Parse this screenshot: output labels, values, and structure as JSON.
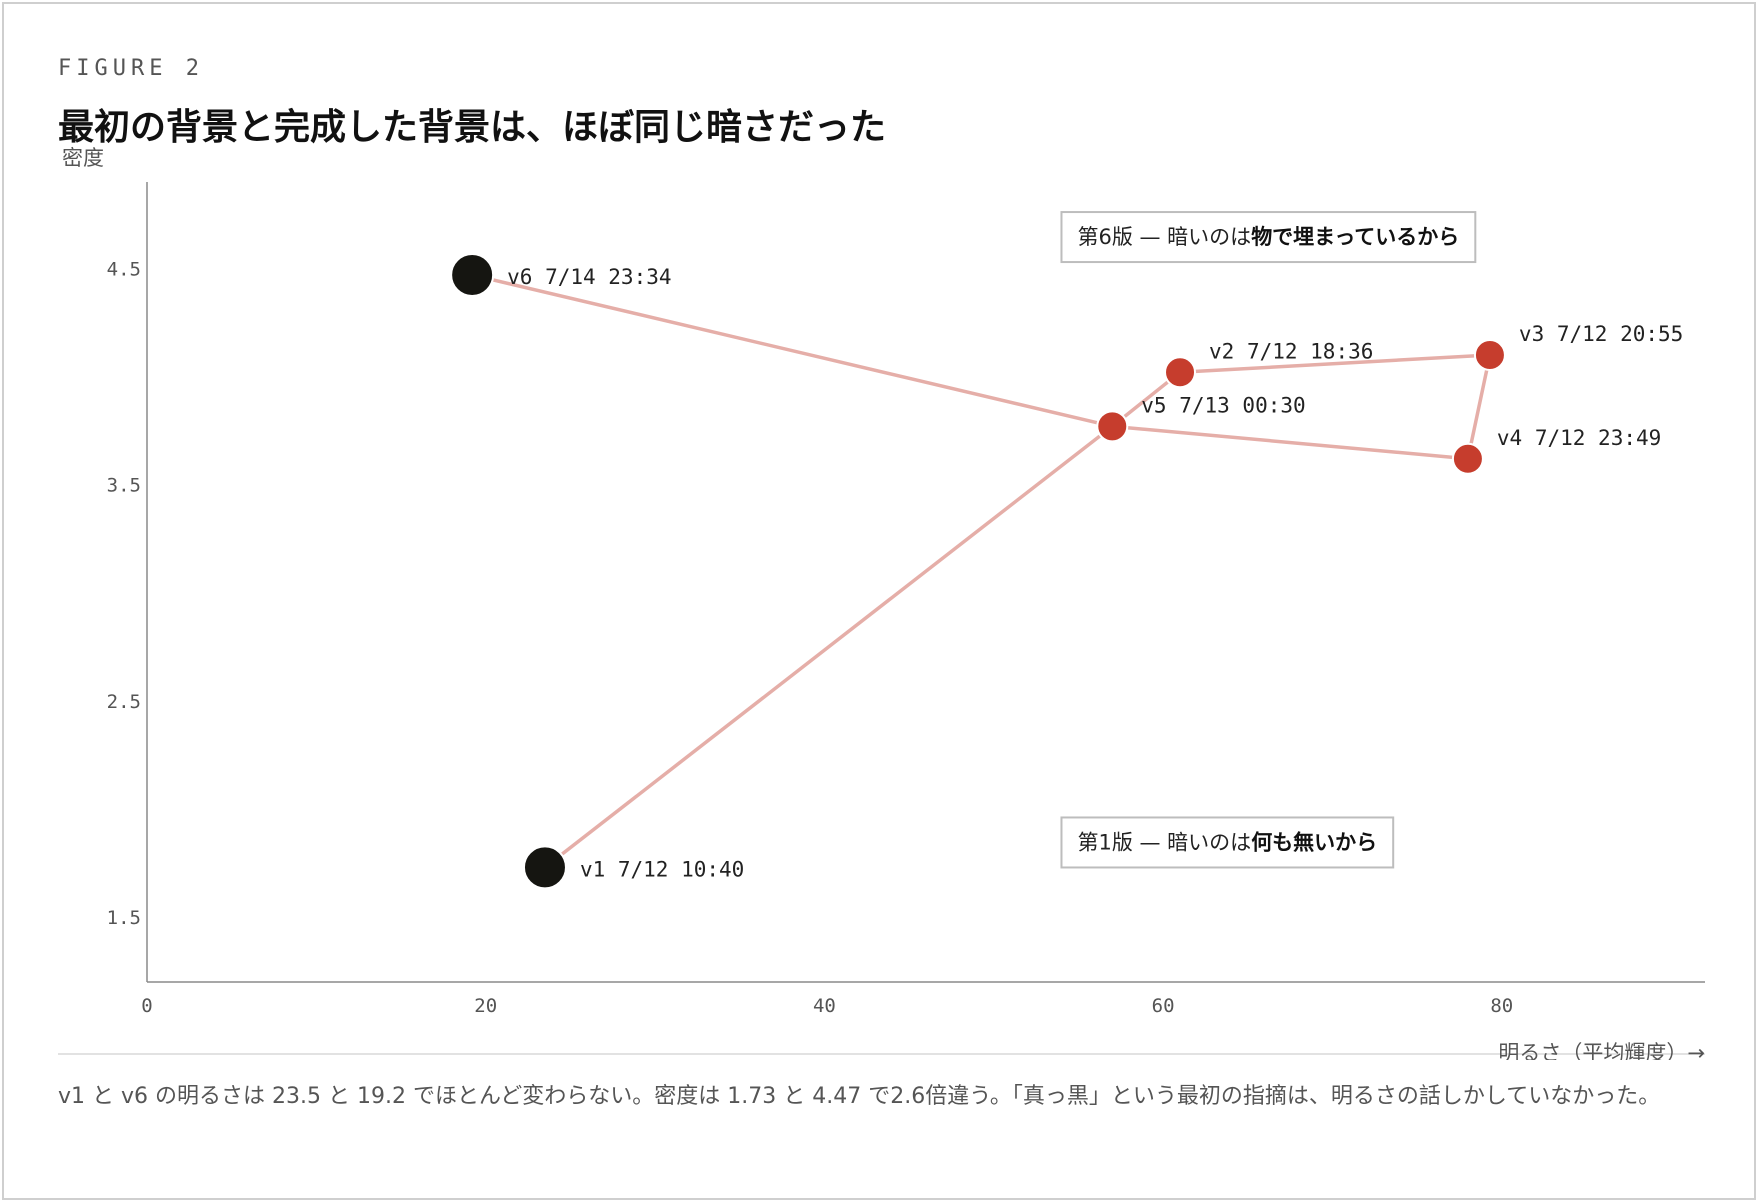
{
  "figure_label": "FIGURE 2",
  "title": "最初の背景と完成した背景は、ほぼ同じ暗さだった",
  "caption": "v1 と v6 の明るさは 23.5 と 19.2 でほとんど変わらない。密度は 1.73 と 4.47 で2.6倍違う。「真っ黒」という最初の指摘は、明るさの話しかしていなかった。",
  "colors": {
    "dark": "#151511",
    "red": "#c63d2d",
    "line": "#e5aea8",
    "axis": "#8a8a8a"
  },
  "chart_data": {
    "type": "scatter",
    "xlabel": "明るさ（平均輝度）→",
    "ylabel": "密度",
    "xlim": [
      0,
      92
    ],
    "ylim": [
      1.2,
      4.9
    ],
    "xticks": [
      "0",
      "20",
      "40",
      "60",
      "80"
    ],
    "yticks": [
      "1.5",
      "2.5",
      "3.5",
      "4.5"
    ],
    "grid": false,
    "points": [
      {
        "id": "v1",
        "time": "7/12 10:40",
        "x": 23.5,
        "y": 1.73,
        "highlight": true
      },
      {
        "id": "v2",
        "time": "7/12 18:36",
        "x": 61.0,
        "y": 4.02,
        "highlight": false
      },
      {
        "id": "v3",
        "time": "7/12 20:55",
        "x": 79.3,
        "y": 4.1,
        "highlight": false
      },
      {
        "id": "v4",
        "time": "7/12 23:49",
        "x": 78.0,
        "y": 3.62,
        "highlight": false
      },
      {
        "id": "v5",
        "time": "7/13 00:30",
        "x": 57.0,
        "y": 3.77,
        "highlight": false
      },
      {
        "id": "v6",
        "time": "7/14 23:34",
        "x": 19.2,
        "y": 4.47,
        "highlight": true
      }
    ],
    "path_order": [
      "v1",
      "v5",
      "v2",
      "v3",
      "v4",
      "v5",
      "v6"
    ],
    "annotations": [
      {
        "prefix": "第6版 — 暗いのは",
        "emphasis": "物で埋まっているから",
        "x": 54.0,
        "y": 4.65
      },
      {
        "prefix": "第1版 — 暗いのは",
        "emphasis": "何も無いから",
        "x": 54.0,
        "y": 1.85
      }
    ]
  }
}
